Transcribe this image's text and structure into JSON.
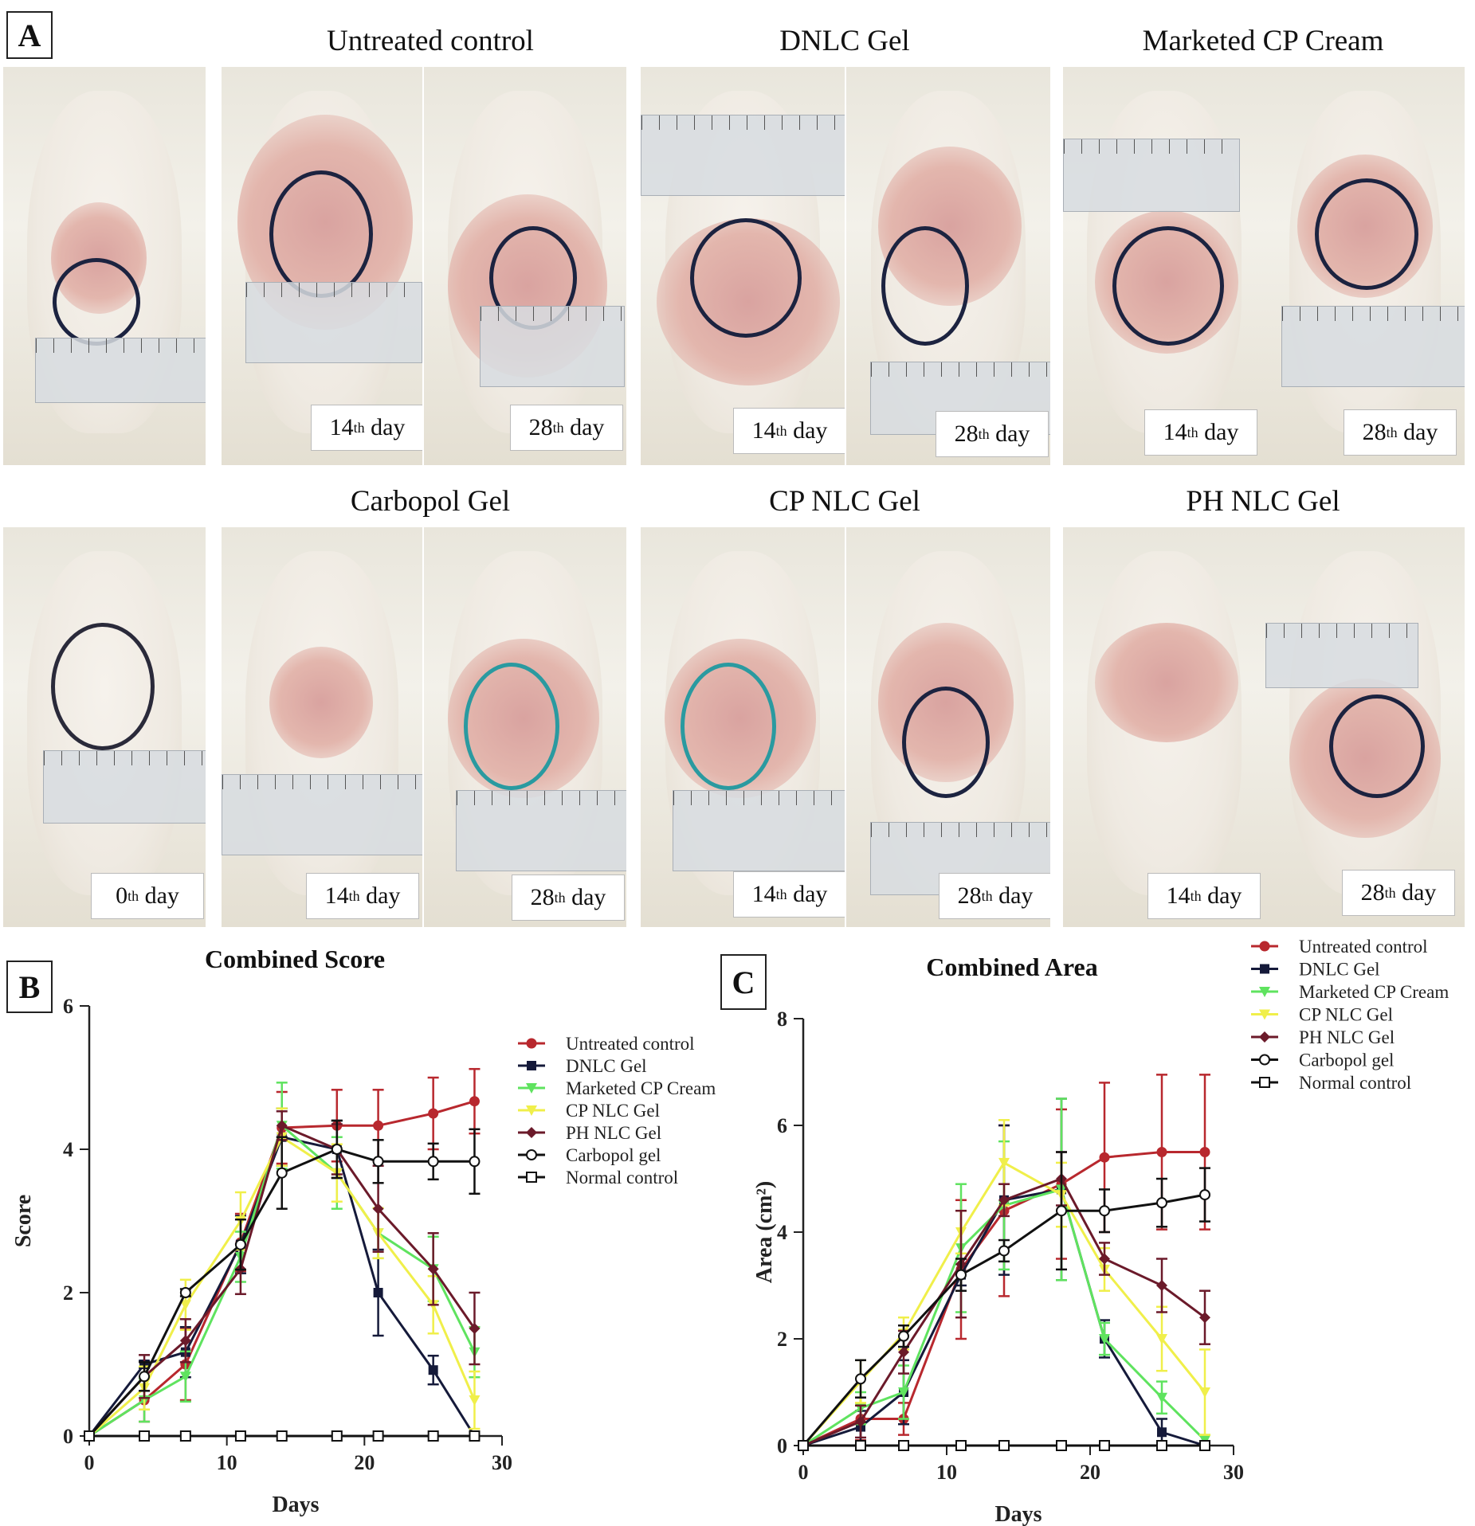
{
  "panels": {
    "a": "A",
    "b": "B",
    "c": "C"
  },
  "groups": {
    "untreated": "Untreated control",
    "dnlc": "DNLC Gel",
    "marketed": "Marketed CP Cream",
    "carbopol": "Carbopol Gel",
    "cpnlc": "CP NLC Gel",
    "phnlc": "PH NLC Gel"
  },
  "days": {
    "d0": "0",
    "d14": "14",
    "d28": "28",
    "suffix_th": "th",
    "word": "day"
  },
  "colors": {
    "untreated": "#b8282e",
    "dnlc": "#151a3a",
    "marketed": "#5fe35f",
    "cpnlc": "#f0ef4a",
    "phnlc": "#6b1a2a",
    "carbopol": "#111111",
    "normal": "#111111"
  },
  "chart_data": [
    {
      "type": "line",
      "title": "Combined Score",
      "xlabel": "Days",
      "ylabel": "Score",
      "xlim": [
        0,
        30
      ],
      "ylim": [
        0,
        6
      ],
      "xticks": [
        0,
        10,
        20,
        30
      ],
      "yticks": [
        0,
        2,
        4,
        6
      ],
      "x": [
        0,
        4,
        7,
        11,
        14,
        18,
        21,
        25,
        28
      ],
      "legend": [
        "Untreated control",
        "DNLC Gel",
        "Marketed CP Cream",
        "CP NLC Gel",
        "PH NLC Gel",
        "Carbopol gel",
        "Normal control"
      ],
      "series": [
        {
          "name": "Untreated control",
          "key": "untreated",
          "marker": "circle-filled",
          "values": [
            0,
            0.5,
            1.0,
            2.7,
            4.3,
            4.33,
            4.33,
            4.5,
            4.67
          ],
          "err": [
            0,
            0.3,
            0.5,
            0.4,
            0.5,
            0.5,
            0.5,
            0.5,
            0.45
          ]
        },
        {
          "name": "DNLC Gel",
          "key": "dnlc",
          "marker": "square-filled",
          "values": [
            0,
            1.0,
            1.17,
            2.67,
            4.17,
            4.0,
            2.0,
            0.92,
            0
          ],
          "err": [
            0,
            0.05,
            0.35,
            0.4,
            0.4,
            0.4,
            0.6,
            0.2,
            0
          ]
        },
        {
          "name": "Marketed CP Cream",
          "key": "marketed",
          "marker": "triangle-down",
          "values": [
            0,
            0.5,
            0.83,
            2.5,
            4.33,
            3.67,
            2.83,
            2.33,
            1.17
          ],
          "err": [
            0,
            0.3,
            0.35,
            0.35,
            0.6,
            0.5,
            0.35,
            0.45,
            0.35
          ]
        },
        {
          "name": "CP NLC Gel",
          "key": "cpnlc",
          "marker": "triangle-down",
          "values": [
            0,
            0.67,
            1.83,
            3.0,
            4.17,
            3.67,
            2.83,
            1.83,
            0.5
          ],
          "err": [
            0,
            0.3,
            0.35,
            0.4,
            0.4,
            0.4,
            0.35,
            0.4,
            0.4
          ]
        },
        {
          "name": "PH NLC Gel",
          "key": "phnlc",
          "marker": "diamond",
          "values": [
            0,
            0.83,
            1.33,
            2.33,
            4.33,
            4.0,
            3.17,
            2.33,
            1.5
          ],
          "err": [
            0,
            0.3,
            0.3,
            0.35,
            0.2,
            0.35,
            0.6,
            0.5,
            0.5
          ]
        },
        {
          "name": "Carbopol gel",
          "key": "carbopol",
          "marker": "circle-open",
          "values": [
            0,
            0.83,
            2.0,
            2.67,
            3.67,
            4.0,
            3.83,
            3.83,
            3.83
          ],
          "err": [
            0,
            0.2,
            0.05,
            0.35,
            0.5,
            0.4,
            0.3,
            0.25,
            0.45
          ]
        },
        {
          "name": "Normal control",
          "key": "normal",
          "marker": "square-open",
          "values": [
            0,
            0,
            0,
            0,
            0,
            0,
            0,
            0,
            0
          ],
          "err": [
            0,
            0,
            0,
            0,
            0,
            0,
            0,
            0,
            0
          ]
        }
      ]
    },
    {
      "type": "line",
      "title": "Combined Area",
      "xlabel": "Days",
      "ylabel": "Area (cm²)",
      "xlim": [
        0,
        30
      ],
      "ylim": [
        0,
        8
      ],
      "xticks": [
        0,
        10,
        20,
        30
      ],
      "yticks": [
        0,
        2,
        4,
        6,
        8
      ],
      "x": [
        0,
        4,
        7,
        11,
        14,
        18,
        21,
        25,
        28
      ],
      "legend": [
        "Untreated control",
        "DNLC Gel",
        "Marketed CP Cream",
        "CP NLC Gel",
        "PH NLC Gel",
        "Carbopol gel",
        "Normal control"
      ],
      "series": [
        {
          "name": "Untreated control",
          "key": "untreated",
          "marker": "circle-filled",
          "values": [
            0,
            0.5,
            0.5,
            3.3,
            4.4,
            4.9,
            5.4,
            5.5,
            5.5
          ],
          "err": [
            0,
            0.4,
            0.3,
            1.3,
            1.6,
            1.4,
            1.4,
            1.45,
            1.45
          ]
        },
        {
          "name": "DNLC Gel",
          "key": "dnlc",
          "marker": "square-filled",
          "values": [
            0,
            0.35,
            1.0,
            3.2,
            4.6,
            4.8,
            2.0,
            0.25,
            0
          ],
          "err": [
            0,
            0.3,
            0.6,
            0.2,
            1.4,
            1.7,
            0.35,
            0.25,
            0
          ]
        },
        {
          "name": "Marketed CP Cream",
          "key": "marketed",
          "marker": "triangle-down",
          "values": [
            0,
            0.7,
            1.0,
            3.7,
            4.5,
            4.8,
            2.0,
            0.9,
            0.1
          ],
          "err": [
            0,
            0.3,
            0.5,
            1.2,
            1.2,
            1.7,
            0.3,
            0.3,
            0.1
          ]
        },
        {
          "name": "CP NLC Gel",
          "key": "cpnlc",
          "marker": "triangle-down",
          "values": [
            0,
            1.2,
            2.1,
            4.0,
            5.3,
            4.7,
            3.3,
            2.0,
            1.0
          ],
          "err": [
            0,
            0.4,
            0.3,
            0.4,
            0.8,
            0.6,
            0.4,
            0.6,
            0.8
          ]
        },
        {
          "name": "PH NLC Gel",
          "key": "phnlc",
          "marker": "diamond",
          "values": [
            0,
            0.45,
            1.75,
            3.4,
            4.6,
            5.0,
            3.5,
            3.0,
            2.4
          ],
          "err": [
            0,
            0.3,
            0.4,
            1.0,
            0.3,
            0.5,
            0.3,
            0.5,
            0.5
          ]
        },
        {
          "name": "Carbopol gel",
          "key": "carbopol",
          "marker": "circle-open",
          "values": [
            0,
            1.25,
            2.05,
            3.2,
            3.65,
            4.4,
            4.4,
            4.55,
            4.7
          ],
          "err": [
            0,
            0.35,
            0.2,
            0.3,
            0.2,
            1.1,
            0.4,
            0.45,
            0.5
          ]
        },
        {
          "name": "Normal control",
          "key": "normal",
          "marker": "square-open",
          "values": [
            0,
            0,
            0,
            0,
            0,
            0,
            0,
            0,
            0
          ],
          "err": [
            0,
            0,
            0,
            0,
            0,
            0,
            0,
            0,
            0
          ]
        }
      ]
    }
  ]
}
